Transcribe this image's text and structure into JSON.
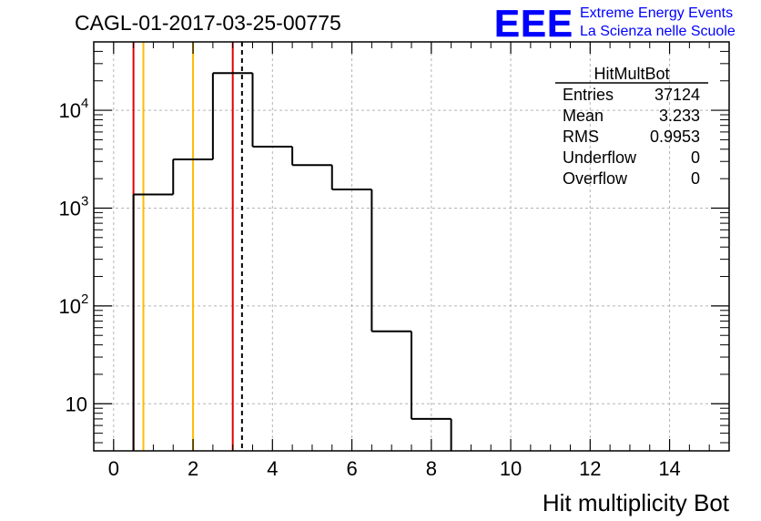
{
  "header": {
    "run_title": "CAGL-01-2017-03-25-00775",
    "logo_text": "EEE",
    "logo_line1": "Extreme Energy Events",
    "logo_line2": "La Scienza nelle Scuole",
    "logo_color": "#0000ff"
  },
  "stats": {
    "title": "HitMultBot",
    "rows": [
      {
        "label": "Entries",
        "value": "37124"
      },
      {
        "label": "Mean",
        "value": "3.233"
      },
      {
        "label": "RMS",
        "value": "0.9953"
      },
      {
        "label": "Underflow",
        "value": "0"
      },
      {
        "label": "Overflow",
        "value": "0"
      }
    ]
  },
  "chart_data": {
    "type": "histogram",
    "xlabel": "Hit multiplicity Bot",
    "ylabel": "",
    "xlim": [
      -0.5,
      15.5
    ],
    "ylim": [
      3.3,
      50000
    ],
    "yscale": "log",
    "grid": true,
    "x_ticks": [
      0,
      2,
      4,
      6,
      8,
      10,
      12,
      14
    ],
    "x_tick_labels": [
      "0",
      "2",
      "4",
      "6",
      "8",
      "10",
      "12",
      "14"
    ],
    "y_ticks": [
      {
        "value": 10,
        "base": "10",
        "exp": ""
      },
      {
        "value": 100,
        "base": "10",
        "exp": "2"
      },
      {
        "value": 1000,
        "base": "10",
        "exp": "3"
      },
      {
        "value": 10000,
        "base": "10",
        "exp": "4"
      }
    ],
    "bins": [
      {
        "center": 1,
        "count": 1380
      },
      {
        "center": 2,
        "count": 3150
      },
      {
        "center": 3,
        "count": 24000
      },
      {
        "center": 4,
        "count": 4250
      },
      {
        "center": 5,
        "count": 2750
      },
      {
        "center": 6,
        "count": 1550
      },
      {
        "center": 7,
        "count": 55
      },
      {
        "center": 8,
        "count": 7
      }
    ],
    "bin_width": 1,
    "vertical_lines": [
      {
        "x": 0.5,
        "color": "#e00000",
        "style": "solid"
      },
      {
        "x": 0.75,
        "color": "#ffbb00",
        "style": "solid"
      },
      {
        "x": 2.0,
        "color": "#ffbb00",
        "style": "solid"
      },
      {
        "x": 3.0,
        "color": "#e00000",
        "style": "solid"
      },
      {
        "x": 3.233,
        "color": "#000000",
        "style": "dashed"
      }
    ],
    "line_color": "#000000"
  }
}
